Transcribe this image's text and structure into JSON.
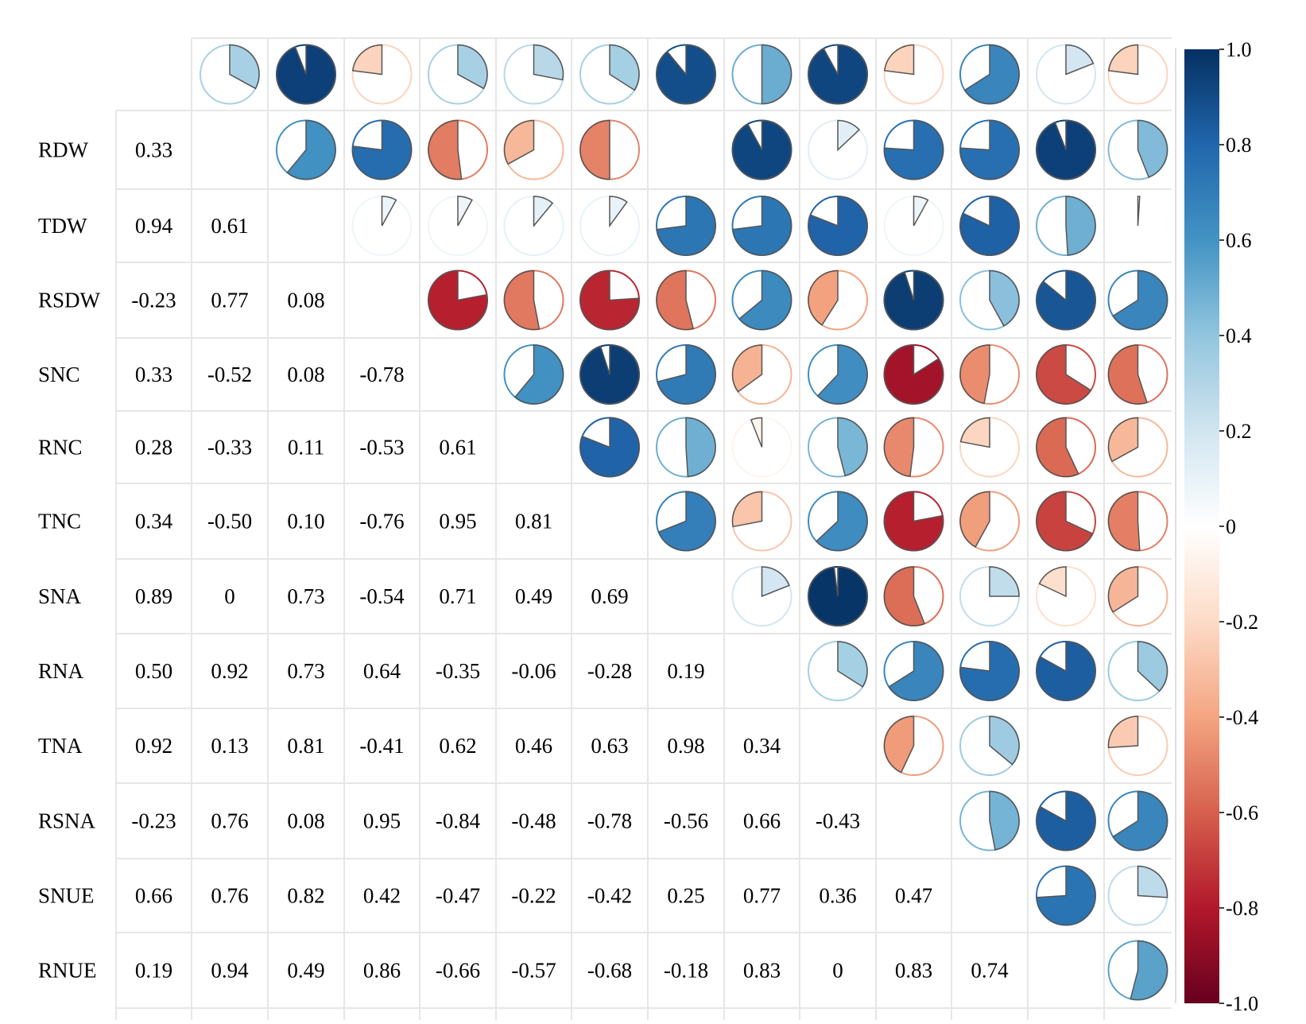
{
  "chart_data": {
    "type": "heatmap",
    "style": "mixed correlogram: numeric coefficients in lower triangle, pie glyphs in upper triangle",
    "variables": [
      "",
      "RDW",
      "TDW",
      "RSDW",
      "SNC",
      "RNC",
      "TNC",
      "SNA",
      "RNA",
      "TNA",
      "RSNA",
      "SNUE",
      "RNUE",
      ""
    ],
    "lower_labels": [
      [],
      [
        "0.33"
      ],
      [
        "0.94",
        "0.61"
      ],
      [
        "-0.23",
        "0.77",
        "0.08"
      ],
      [
        "0.33",
        "-0.52",
        "0.08",
        "-0.78"
      ],
      [
        "0.28",
        "-0.33",
        "0.11",
        "-0.53",
        "0.61"
      ],
      [
        "0.34",
        "-0.50",
        "0.10",
        "-0.76",
        "0.95",
        "0.81"
      ],
      [
        "0.89",
        "0",
        "0.73",
        "-0.54",
        "0.71",
        "0.49",
        "0.69"
      ],
      [
        "0.50",
        "0.92",
        "0.73",
        "0.64",
        "-0.35",
        "-0.06",
        "-0.28",
        "0.19"
      ],
      [
        "0.92",
        "0.13",
        "0.81",
        "-0.41",
        "0.62",
        "0.46",
        "0.63",
        "0.98",
        "0.34"
      ],
      [
        "-0.23",
        "0.76",
        "0.08",
        "0.95",
        "-0.84",
        "-0.48",
        "-0.78",
        "-0.56",
        "0.66",
        "-0.43"
      ],
      [
        "0.66",
        "0.76",
        "0.82",
        "0.42",
        "-0.47",
        "-0.22",
        "-0.42",
        "0.25",
        "0.77",
        "0.36",
        "0.47"
      ],
      [
        "0.19",
        "0.94",
        "0.49",
        "0.86",
        "-0.66",
        "-0.57",
        "-0.68",
        "-0.18",
        "0.83",
        "0",
        "0.83",
        "0.74"
      ]
    ],
    "upper_values": [
      [
        0.33,
        0.94,
        -0.23,
        0.33,
        0.28,
        0.34,
        0.89,
        0.5,
        0.92,
        -0.23,
        0.66,
        0.19,
        -0.23
      ],
      [
        0.61,
        0.77,
        -0.52,
        -0.33,
        -0.5,
        0,
        0.92,
        0.13,
        0.76,
        0.76,
        0.94,
        0.44
      ],
      [
        0.08,
        0.08,
        0.11,
        0.1,
        0.73,
        0.73,
        0.81,
        0.08,
        0.82,
        0.49,
        0.01
      ],
      [
        -0.78,
        -0.53,
        -0.76,
        -0.54,
        0.64,
        -0.41,
        0.95,
        0.42,
        0.86,
        0.66
      ],
      [
        0.61,
        0.95,
        0.71,
        -0.35,
        0.62,
        -0.84,
        -0.47,
        -0.66,
        -0.55
      ],
      [
        0.81,
        0.49,
        -0.06,
        0.46,
        -0.48,
        -0.22,
        -0.57,
        -0.33
      ],
      [
        0.69,
        -0.28,
        0.63,
        -0.78,
        -0.42,
        -0.68,
        -0.51
      ],
      [
        0.19,
        0.98,
        -0.56,
        0.25,
        -0.18,
        -0.34
      ],
      [
        0.34,
        0.66,
        0.77,
        0.83,
        0.37
      ],
      [
        -0.43,
        0.36,
        0,
        -0.26
      ],
      [
        0.47,
        0.83,
        0.66
      ],
      [
        0.74,
        0.26
      ],
      [
        0.54
      ]
    ],
    "colorbar": {
      "range": [
        -1.0,
        1.0
      ],
      "ticks": [
        "1.0",
        "0.8",
        "0.6",
        "0.4",
        "0.2",
        "0",
        "-0.2",
        "-0.4",
        "-0.6",
        "-0.8",
        "-1.0"
      ],
      "colors": [
        "#67001f",
        "#b2182b",
        "#d6604d",
        "#f4a582",
        "#fddbc7",
        "#ffffff",
        "#d1e5f0",
        "#92c5de",
        "#4393c3",
        "#2166ac",
        "#053061"
      ]
    },
    "grid": true
  }
}
